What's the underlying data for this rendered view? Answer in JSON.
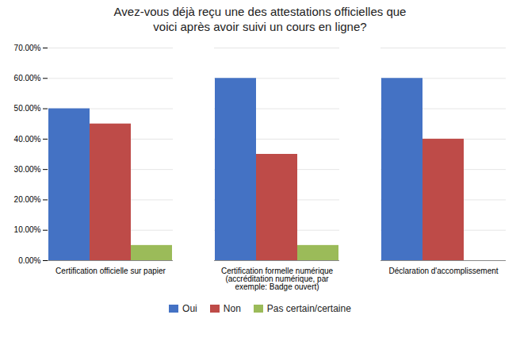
{
  "chart_data": {
    "type": "bar",
    "title": "Avez-vous déjà reçu une des attestations officielles que\nvoici après avoir suivi un cours en ligne?",
    "categories": [
      "Certification officielle sur papier",
      "Certification formelle numérique\n(accréditation numérique, par\nexemple: Badge ouvert)",
      "Déclaration d'accomplissement"
    ],
    "series": [
      {
        "name": "Oui",
        "color": "#4472C4",
        "values": [
          0.5,
          0.6,
          0.6
        ]
      },
      {
        "name": "Non",
        "color": "#BE4B48",
        "values": [
          0.45,
          0.35,
          0.4
        ]
      },
      {
        "name": "Pas certain/certaine",
        "color": "#9BBB59",
        "values": [
          0.05,
          0.05,
          0.0
        ]
      }
    ],
    "ylim": [
      0,
      0.7
    ],
    "yticks": [
      {
        "value": 0.0,
        "label": "0.00%"
      },
      {
        "value": 0.1,
        "label": "10.00%"
      },
      {
        "value": 0.2,
        "label": "20.00%"
      },
      {
        "value": 0.3,
        "label": "30.00%"
      },
      {
        "value": 0.4,
        "label": "40.00%"
      },
      {
        "value": 0.5,
        "label": "50.00%"
      },
      {
        "value": 0.6,
        "label": "60.00%"
      },
      {
        "value": 0.7,
        "label": "70.00%"
      }
    ],
    "grid": true,
    "legend": "bottom"
  }
}
